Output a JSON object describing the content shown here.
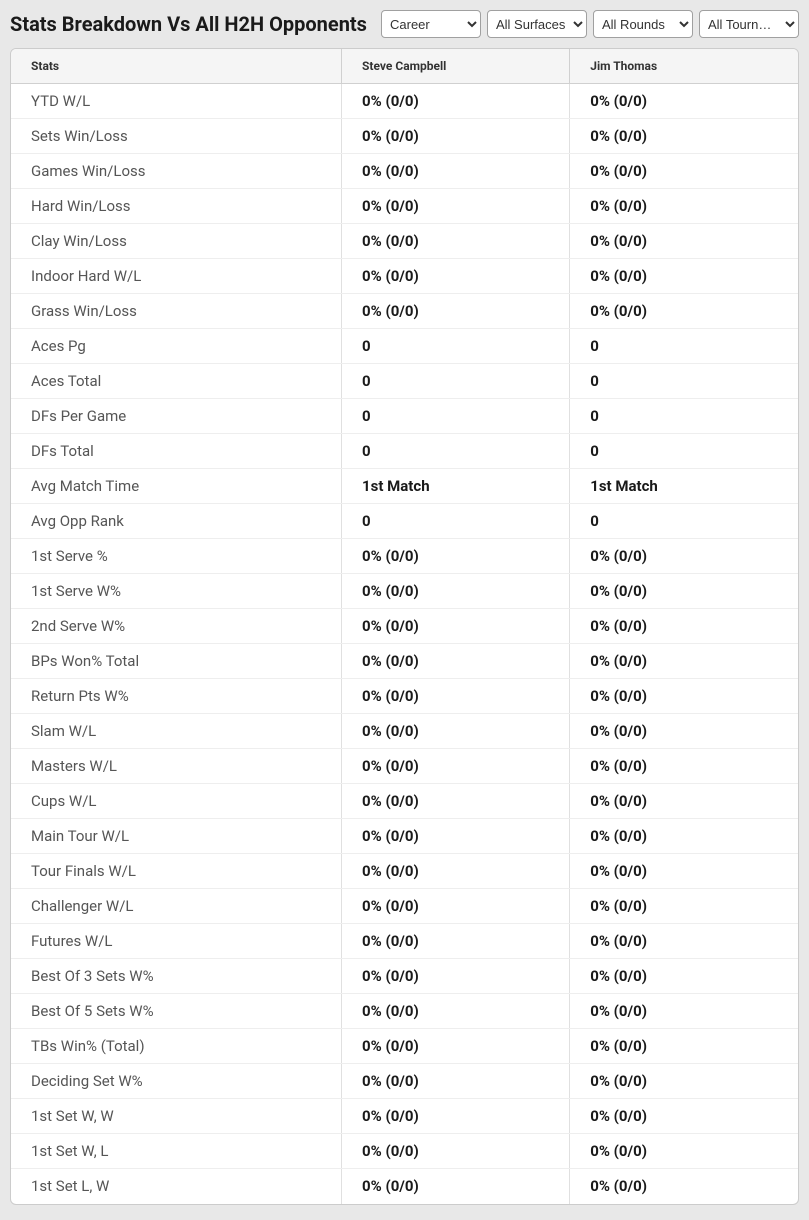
{
  "title": "Stats Breakdown Vs All H2H Opponents",
  "filters": {
    "career": {
      "selected": "Career",
      "options": [
        "Career"
      ]
    },
    "surfaces": {
      "selected": "All Surfaces",
      "options": [
        "All Surfaces"
      ]
    },
    "rounds": {
      "selected": "All Rounds",
      "options": [
        "All Rounds"
      ]
    },
    "tournaments": {
      "selected": "All Tourn…",
      "options": [
        "All Tourn…"
      ]
    }
  },
  "table": {
    "columns": [
      "Stats",
      "Steve Campbell",
      "Jim Thomas"
    ],
    "column_widths": [
      "42%",
      "29%",
      "29%"
    ],
    "rows": [
      [
        "YTD W/L",
        "0% (0/0)",
        "0% (0/0)"
      ],
      [
        "Sets Win/Loss",
        "0% (0/0)",
        "0% (0/0)"
      ],
      [
        "Games Win/Loss",
        "0% (0/0)",
        "0% (0/0)"
      ],
      [
        "Hard Win/Loss",
        "0% (0/0)",
        "0% (0/0)"
      ],
      [
        "Clay Win/Loss",
        "0% (0/0)",
        "0% (0/0)"
      ],
      [
        "Indoor Hard W/L",
        "0% (0/0)",
        "0% (0/0)"
      ],
      [
        "Grass Win/Loss",
        "0% (0/0)",
        "0% (0/0)"
      ],
      [
        "Aces Pg",
        "0",
        "0"
      ],
      [
        "Aces Total",
        "0",
        "0"
      ],
      [
        "DFs Per Game",
        "0",
        "0"
      ],
      [
        "DFs Total",
        "0",
        "0"
      ],
      [
        "Avg Match Time",
        "1st Match",
        "1st Match"
      ],
      [
        "Avg Opp Rank",
        "0",
        "0"
      ],
      [
        "1st Serve %",
        "0% (0/0)",
        "0% (0/0)"
      ],
      [
        "1st Serve W%",
        "0% (0/0)",
        "0% (0/0)"
      ],
      [
        "2nd Serve W%",
        "0% (0/0)",
        "0% (0/0)"
      ],
      [
        "BPs Won% Total",
        "0% (0/0)",
        "0% (0/0)"
      ],
      [
        "Return Pts W%",
        "0% (0/0)",
        "0% (0/0)"
      ],
      [
        "Slam W/L",
        "0% (0/0)",
        "0% (0/0)"
      ],
      [
        "Masters W/L",
        "0% (0/0)",
        "0% (0/0)"
      ],
      [
        "Cups W/L",
        "0% (0/0)",
        "0% (0/0)"
      ],
      [
        "Main Tour W/L",
        "0% (0/0)",
        "0% (0/0)"
      ],
      [
        "Tour Finals W/L",
        "0% (0/0)",
        "0% (0/0)"
      ],
      [
        "Challenger W/L",
        "0% (0/0)",
        "0% (0/0)"
      ],
      [
        "Futures W/L",
        "0% (0/0)",
        "0% (0/0)"
      ],
      [
        "Best Of 3 Sets W%",
        "0% (0/0)",
        "0% (0/0)"
      ],
      [
        "Best Of 5 Sets W%",
        "0% (0/0)",
        "0% (0/0)"
      ],
      [
        "TBs Win% (Total)",
        "0% (0/0)",
        "0% (0/0)"
      ],
      [
        "Deciding Set W%",
        "0% (0/0)",
        "0% (0/0)"
      ],
      [
        "1st Set W, W",
        "0% (0/0)",
        "0% (0/0)"
      ],
      [
        "1st Set W, L",
        "0% (0/0)",
        "0% (0/0)"
      ],
      [
        "1st Set L, W",
        "0% (0/0)",
        "0% (0/0)"
      ]
    ]
  },
  "styling": {
    "background_color": "#e8e8e8",
    "table_background": "#ffffff",
    "header_background": "#f5f5f5",
    "border_color": "#cccccc",
    "row_border_color": "#eeeeee",
    "stat_label_color": "#555555",
    "value_color": "#1a1a1a",
    "title_fontsize": 20,
    "header_fontsize": 12,
    "cell_fontsize": 15
  }
}
